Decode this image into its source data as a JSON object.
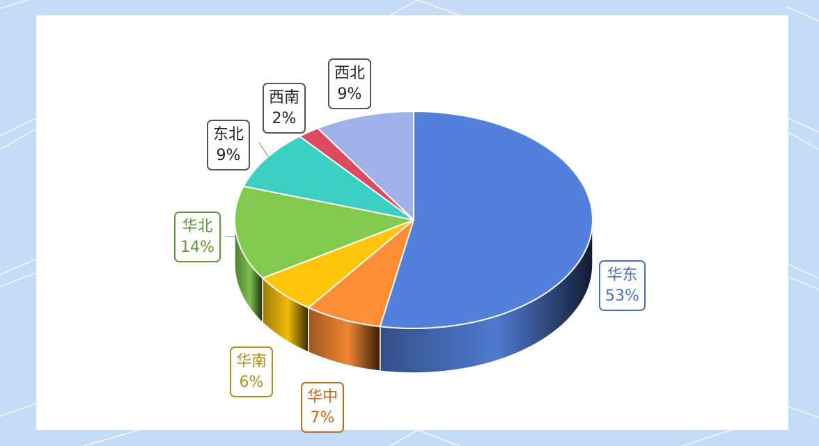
{
  "colors": {
    "background": "#c5dcf6",
    "panel": "#ffffff"
  },
  "chart_data": {
    "type": "pie",
    "title": "",
    "style": "3d-tilted",
    "start_angle_deg": 0,
    "direction": "clockwise",
    "legend": "none",
    "slices": [
      {
        "label": "华东",
        "value": 53,
        "display": "53%",
        "color": "#5380db",
        "label_color": "#4a6fbf"
      },
      {
        "label": "华中",
        "value": 7,
        "display": "7%",
        "color": "#fe8d36",
        "label_color": "#c8661b"
      },
      {
        "label": "华南",
        "value": 6,
        "display": "6%",
        "color": "#fec509",
        "label_color": "#b38f16"
      },
      {
        "label": "华北",
        "value": 14,
        "display": "14%",
        "color": "#82ca4d",
        "label_color": "#5e9a32"
      },
      {
        "label": "东北",
        "value": 9,
        "display": "9%",
        "color": "#3bcfc3",
        "label_color": "#555555"
      },
      {
        "label": "西南",
        "value": 2,
        "display": "2%",
        "color": "#db4a5e",
        "label_color": "#555555"
      },
      {
        "label": "西北",
        "value": 9,
        "display": "9%",
        "color": "#a0b1ea",
        "label_color": "#555555"
      }
    ]
  }
}
